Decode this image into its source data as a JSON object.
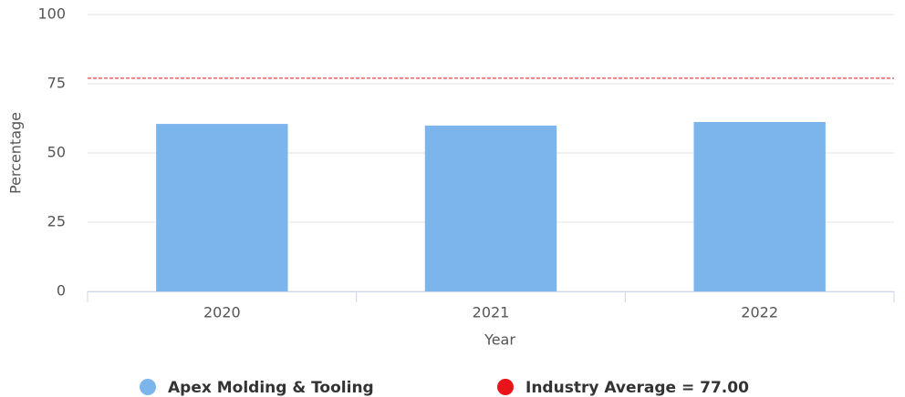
{
  "chart_data": {
    "type": "bar",
    "x_label": "Year",
    "y_label": "Percentage",
    "categories": [
      "2020",
      "2021",
      "2022"
    ],
    "series": [
      {
        "name": "Apex Molding & Tooling",
        "color": "#7cb5ec",
        "values": [
          60.5,
          59.9,
          61.2
        ]
      }
    ],
    "reference_line": {
      "name": "Industry Average = 77.00",
      "value": 77,
      "color": "#e8141a"
    },
    "ylim": [
      0,
      100
    ],
    "yticks": [
      0,
      25,
      50,
      75,
      100
    ],
    "grid": true
  }
}
